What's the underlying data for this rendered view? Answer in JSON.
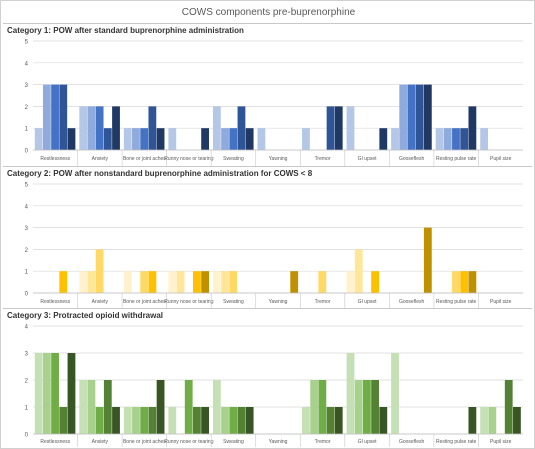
{
  "main_title": "COWS components pre-buprenorphine",
  "chart_data": [
    {
      "type": "bar",
      "title": "Category 1: POW after standard buprenorphine administration",
      "ylim": [
        0,
        5
      ],
      "yticks": [
        "0",
        "1",
        "2",
        "3",
        "4",
        "5"
      ],
      "grid": true,
      "categories": [
        "Restlessness",
        "Anxiety",
        "Bone or joint aches",
        "Runny nose or tearing",
        "Sweating",
        "Yawning",
        "Tremor",
        "GI upset",
        "Gooseflesh",
        "Resting pulse rate",
        "Pupil size"
      ],
      "series": [
        {
          "values": [
            1,
            2,
            1,
            1,
            2,
            1,
            1,
            2,
            1,
            1,
            1
          ],
          "color": "#b4c7e7"
        },
        {
          "values": [
            3,
            2,
            1,
            0,
            1,
            0,
            0,
            0,
            3,
            1,
            0
          ],
          "color": "#8faadc"
        },
        {
          "values": [
            3,
            2,
            1,
            0,
            1,
            0,
            0,
            0,
            3,
            1,
            0
          ],
          "color": "#4472c4"
        },
        {
          "values": [
            3,
            1,
            2,
            0,
            2,
            0,
            2,
            0,
            3,
            1,
            0
          ],
          "color": "#2f5597"
        },
        {
          "values": [
            1,
            2,
            1,
            1,
            1,
            0,
            2,
            1,
            3,
            2,
            0
          ],
          "color": "#1f3864"
        }
      ]
    },
    {
      "type": "bar",
      "title": "Category 2: POW after nonstandard buprenorphine administration for COWS < 8",
      "ylim": [
        0,
        5
      ],
      "yticks": [
        "0",
        "1",
        "2",
        "3",
        "4",
        "5"
      ],
      "grid": true,
      "categories": [
        "Restlessness",
        "Anxiety",
        "Bone or joint aches",
        "Runny nose or tearing",
        "Sweating",
        "Yawning",
        "Tremor",
        "GI upset",
        "Gooseflesh",
        "Resting pulse rate",
        "Pupil size"
      ],
      "series": [
        {
          "values": [
            0,
            1,
            1,
            1,
            1,
            0,
            0,
            1,
            0,
            0,
            0
          ],
          "color": "#fff2cc"
        },
        {
          "values": [
            0,
            1,
            0,
            1,
            1,
            0,
            0,
            2,
            0,
            0,
            0
          ],
          "color": "#ffe699"
        },
        {
          "values": [
            0,
            2,
            1,
            0,
            1,
            0,
            1,
            0,
            0,
            1,
            0
          ],
          "color": "#ffd966"
        },
        {
          "values": [
            1,
            0,
            1,
            1,
            0,
            0,
            0,
            1,
            0,
            1,
            0
          ],
          "color": "#ffc000"
        },
        {
          "values": [
            0,
            0,
            0,
            1,
            0,
            1,
            0,
            0,
            3,
            1,
            0
          ],
          "color": "#bf9000"
        }
      ]
    },
    {
      "type": "bar",
      "title": "Category 3: Protracted opioid withdrawal",
      "ylim": [
        0,
        4
      ],
      "yticks": [
        "0",
        "1",
        "2",
        "3",
        "4"
      ],
      "grid": true,
      "categories": [
        "Restlessness",
        "Anxiety",
        "Bone or joint aches",
        "Runny nose or tearing",
        "Sweating",
        "Yawning",
        "Tremor",
        "GI upset",
        "Gooseflesh",
        "Resting pulse rate",
        "Pupil size"
      ],
      "series": [
        {
          "values": [
            3,
            2,
            1,
            1,
            2,
            0,
            1,
            3,
            3,
            0,
            1
          ],
          "color": "#c5e0b4"
        },
        {
          "values": [
            3,
            2,
            1,
            0,
            1,
            0,
            2,
            2,
            0,
            0,
            1
          ],
          "color": "#a9d18e"
        },
        {
          "values": [
            3,
            1,
            1,
            2,
            1,
            0,
            2,
            2,
            0,
            0,
            0
          ],
          "color": "#70ad47"
        },
        {
          "values": [
            1,
            2,
            1,
            1,
            1,
            0,
            1,
            2,
            0,
            0,
            2
          ],
          "color": "#548235"
        },
        {
          "values": [
            3,
            1,
            2,
            1,
            1,
            0,
            1,
            1,
            0,
            1,
            1
          ],
          "color": "#375623"
        }
      ]
    }
  ]
}
